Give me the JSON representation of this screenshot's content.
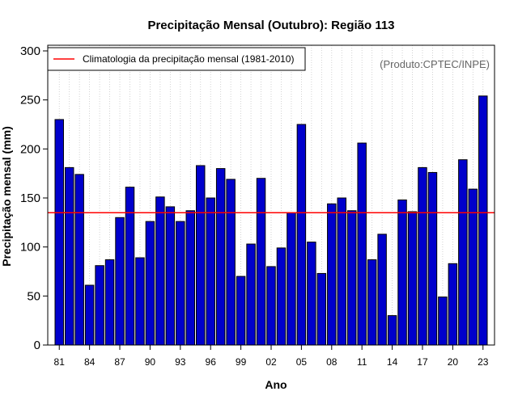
{
  "chart_data": {
    "type": "bar",
    "title": "Precipitação Mensal (Outubro): Região 113",
    "xlabel": "Ano",
    "ylabel": "Precipitação mensal (mm)",
    "ylim": [
      0,
      300
    ],
    "yticks": [
      0,
      50,
      100,
      150,
      200,
      250,
      300
    ],
    "categories": [
      "81",
      "82",
      "83",
      "84",
      "85",
      "86",
      "87",
      "88",
      "89",
      "90",
      "91",
      "92",
      "93",
      "94",
      "95",
      "96",
      "97",
      "98",
      "99",
      "00",
      "01",
      "02",
      "03",
      "04",
      "05",
      "06",
      "07",
      "08",
      "09",
      "10",
      "11",
      "12",
      "13",
      "14",
      "15",
      "16",
      "17",
      "18",
      "19",
      "20",
      "21",
      "22",
      "23"
    ],
    "xtick_labels": [
      "81",
      "84",
      "87",
      "90",
      "93",
      "96",
      "99",
      "02",
      "05",
      "08",
      "11",
      "14",
      "17",
      "20",
      "23"
    ],
    "values": [
      230,
      181,
      174,
      61,
      81,
      87,
      130,
      161,
      89,
      126,
      151,
      141,
      126,
      137,
      183,
      150,
      180,
      169,
      70,
      103,
      170,
      80,
      99,
      135,
      225,
      105,
      73,
      144,
      150,
      137,
      206,
      87,
      113,
      30,
      148,
      136,
      181,
      176,
      49,
      83,
      189,
      159,
      254
    ],
    "reference_line": {
      "value": 135,
      "label": "Climatologia da precipitação mensal (1981-2010)",
      "color": "#ff0000"
    },
    "bar_color": "#0000cc",
    "credit": "(Produto:CPTEC/INPE)",
    "grid": "vertical-dotted",
    "legend_position": "top-left"
  }
}
